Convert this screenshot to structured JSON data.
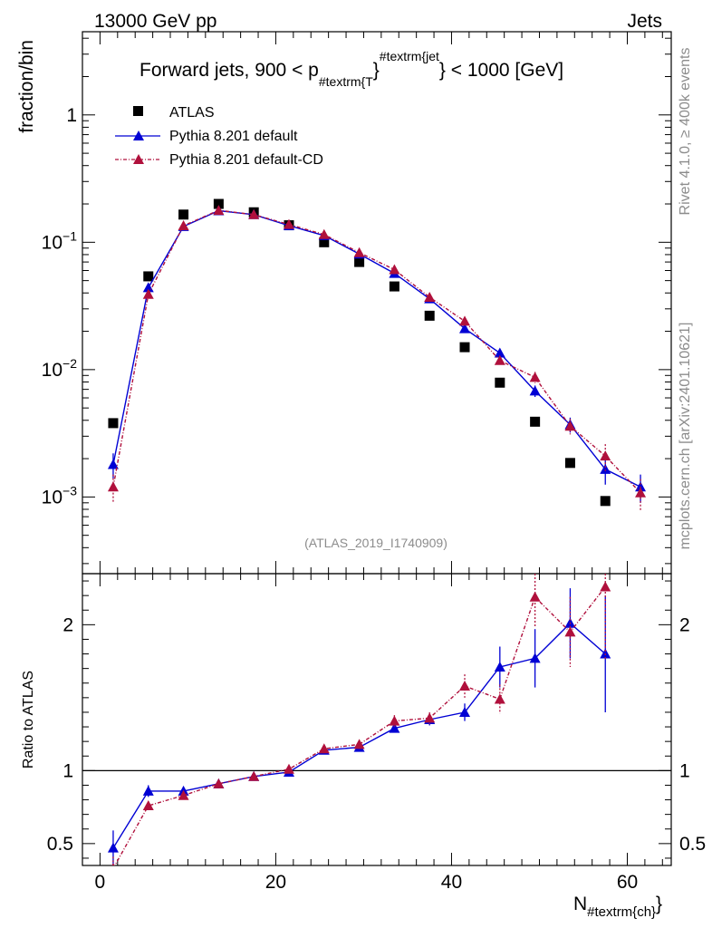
{
  "header": {
    "left": "13000 GeV pp",
    "right": "Jets",
    "side_top": "Rivet 4.1.0, ≥ 400k events",
    "side_bottom": "mcplots.cern.ch [arXiv:2401.10621]"
  },
  "chart_data": [
    {
      "type": "scatter",
      "title": "Forward jets, 900 < p",
      "title_sub": "#textrm{T",
      "title_mid": "}",
      "title_sup": "#textrm{jet",
      "title_end": "} < 1000 [GeV]",
      "ylabel": "fraction/bin",
      "yscale": "log",
      "ylim": [
        0.00025,
        4.5
      ],
      "xlim": [
        -2,
        65
      ],
      "yticks": [
        {
          "value": 0.001,
          "base": "10",
          "exp": "−3"
        },
        {
          "value": 0.01,
          "base": "10",
          "exp": "−2"
        },
        {
          "value": 0.1,
          "base": "10",
          "exp": "−1"
        },
        {
          "value": 1,
          "base": "1",
          "exp": ""
        }
      ],
      "watermark": "(ATLAS_2019_I1740909)",
      "legend": [
        "ATLAS",
        "Pythia 8.201 default",
        "Pythia 8.201 default-CD"
      ],
      "x": [
        1.5,
        5.5,
        9.5,
        13.5,
        17.5,
        21.5,
        25.5,
        29.5,
        33.5,
        37.5,
        41.5,
        45.5,
        49.5,
        53.5,
        57.5,
        61.5
      ],
      "series": [
        {
          "name": "ATLAS",
          "color": "#000000",
          "values": [
            0.0038,
            0.054,
            0.165,
            0.2,
            0.172,
            0.136,
            0.1,
            0.07,
            0.045,
            0.0265,
            0.015,
            0.0079,
            0.0039,
            0.00185,
            0.00093,
            null
          ]
        },
        {
          "name": "Pythia 8.201 default",
          "color": "#0000d4",
          "values": [
            0.0018,
            0.044,
            0.133,
            0.177,
            0.165,
            0.135,
            0.113,
            0.081,
            0.057,
            0.036,
            0.021,
            0.0135,
            0.0068,
            0.0037,
            0.00165,
            0.0012
          ],
          "errors": [
            0.0004,
            0.002,
            0.003,
            0.003,
            0.003,
            0.003,
            0.002,
            0.002,
            0.001,
            0.001,
            0.0007,
            0.0009,
            0.0007,
            0.0005,
            0.0004,
            0.0003
          ]
        },
        {
          "name": "Pythia 8.201 default-CD",
          "color": "#b0103c",
          "values": [
            0.0012,
            0.039,
            0.135,
            0.178,
            0.165,
            0.138,
            0.115,
            0.083,
            0.061,
            0.037,
            0.024,
            0.0118,
            0.0087,
            0.0036,
            0.0021,
            0.00108
          ],
          "errors": [
            0.0003,
            0.002,
            0.003,
            0.003,
            0.003,
            0.003,
            0.002,
            0.002,
            0.001,
            0.001,
            0.0008,
            0.0008,
            0.0009,
            0.0005,
            0.0005,
            0.0003
          ]
        }
      ]
    },
    {
      "type": "scatter",
      "ylabel": "Ratio to ATLAS",
      "xlabel": "N",
      "xlabel_sub": "#textrm{ch}",
      "ylim": [
        0.35,
        2.35
      ],
      "xlim": [
        -2,
        65
      ],
      "yticks": [
        0.5,
        1,
        2
      ],
      "ytick_labels": [
        "0.5",
        "1",
        "2"
      ],
      "xticks": [
        0,
        20,
        40,
        60
      ],
      "xtick_labels": [
        "0",
        "20",
        "40",
        "60"
      ],
      "reference": 1,
      "x": [
        1.5,
        5.5,
        9.5,
        13.5,
        17.5,
        21.5,
        25.5,
        29.5,
        33.5,
        37.5,
        41.5,
        45.5,
        49.5,
        53.5,
        57.5
      ],
      "series": [
        {
          "name": "Pythia 8.201 default",
          "color": "#0000d4",
          "values": [
            0.47,
            0.86,
            0.86,
            0.91,
            0.96,
            0.99,
            1.14,
            1.16,
            1.29,
            1.35,
            1.4,
            1.71,
            1.77,
            2.01,
            1.8
          ],
          "errors": [
            0.12,
            0.04,
            0.02,
            0.01,
            0.01,
            0.02,
            0.02,
            0.03,
            0.03,
            0.04,
            0.06,
            0.14,
            0.2,
            0.24,
            0.4
          ]
        },
        {
          "name": "Pythia 8.201 default-CD",
          "color": "#b0103c",
          "values": [
            0.33,
            0.76,
            0.83,
            0.91,
            0.96,
            1.01,
            1.15,
            1.18,
            1.34,
            1.36,
            1.58,
            1.49,
            2.19,
            1.95,
            2.26
          ],
          "errors": [
            0.08,
            0.03,
            0.02,
            0.01,
            0.01,
            0.02,
            0.02,
            0.03,
            0.04,
            0.04,
            0.08,
            0.1,
            0.2,
            0.24,
            0.5
          ]
        }
      ]
    }
  ]
}
